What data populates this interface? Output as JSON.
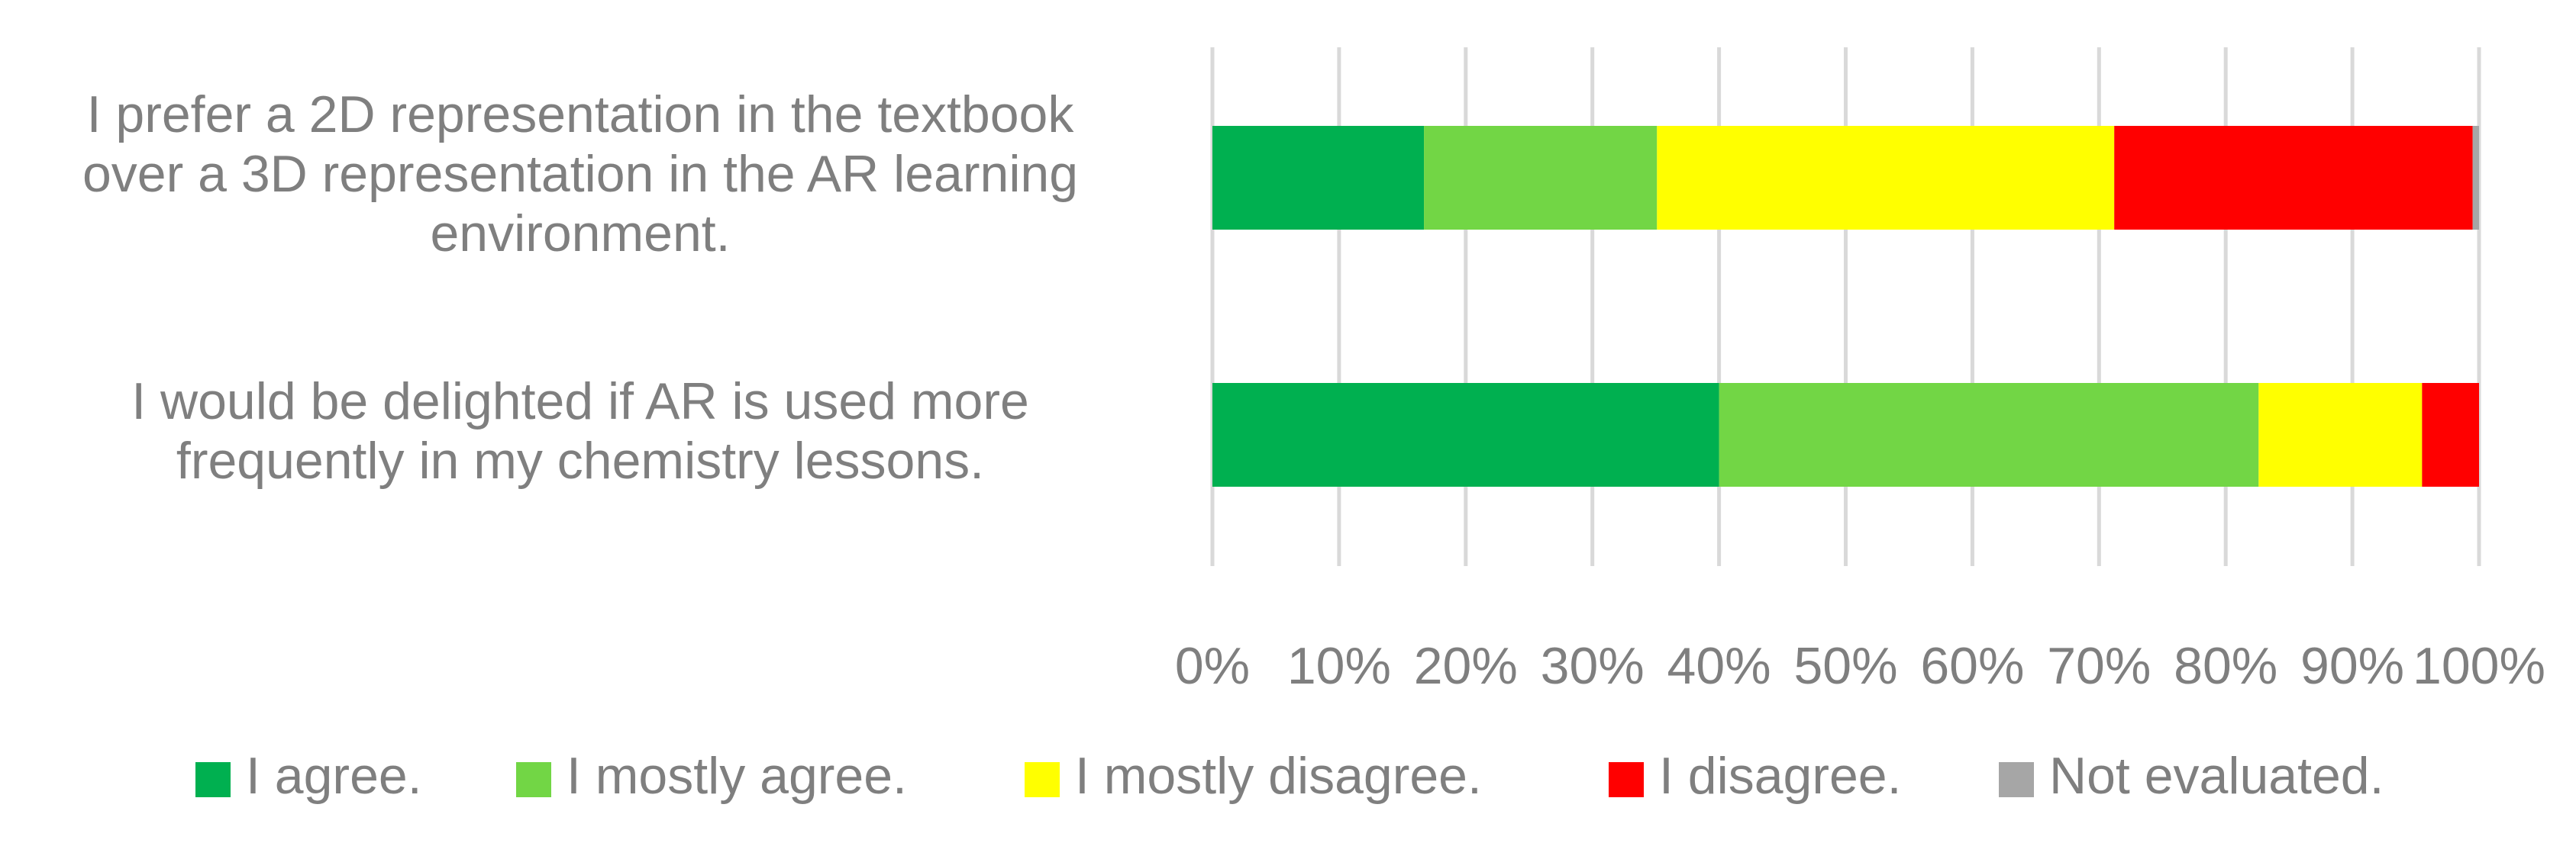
{
  "chart_data": {
    "type": "bar",
    "orientation": "horizontal",
    "stacked": true,
    "percent_stacked": true,
    "categories": [
      "I prefer a 2D representation in the textbook over a 3D representation in the AR learning environment.",
      "I would be delighted if AR is used more frequently in my chemistry lessons."
    ],
    "category_lines": [
      [
        "I prefer a 2D representation in the textbook",
        "over a 3D representation in the AR learning",
        "environment."
      ],
      [
        "I would be delighted if AR is used more",
        "frequently in my chemistry lessons."
      ]
    ],
    "series": [
      {
        "name": "I agree.",
        "color": "#00b050",
        "values": [
          16.7,
          40.0
        ]
      },
      {
        "name": "I mostly agree.",
        "color": "#72d645",
        "values": [
          18.4,
          42.6
        ]
      },
      {
        "name": "I mostly disagree.",
        "color": "#ffff00",
        "values": [
          36.1,
          12.9
        ]
      },
      {
        "name": "I disagree.",
        "color": "#ff0000",
        "values": [
          28.3,
          4.5
        ]
      },
      {
        "name": "Not evaluated.",
        "color": "#a6a6a6",
        "values": [
          0.5,
          0.0
        ]
      }
    ],
    "xlim": [
      0,
      100
    ],
    "xticks": [
      0,
      10,
      20,
      30,
      40,
      50,
      60,
      70,
      80,
      90,
      100
    ],
    "xtick_labels": [
      "0%",
      "10%",
      "20%",
      "30%",
      "40%",
      "50%",
      "60%",
      "70%",
      "80%",
      "90%",
      "100%"
    ],
    "grid": true,
    "legend_position": "bottom",
    "title": "",
    "xlabel": "",
    "ylabel": ""
  }
}
